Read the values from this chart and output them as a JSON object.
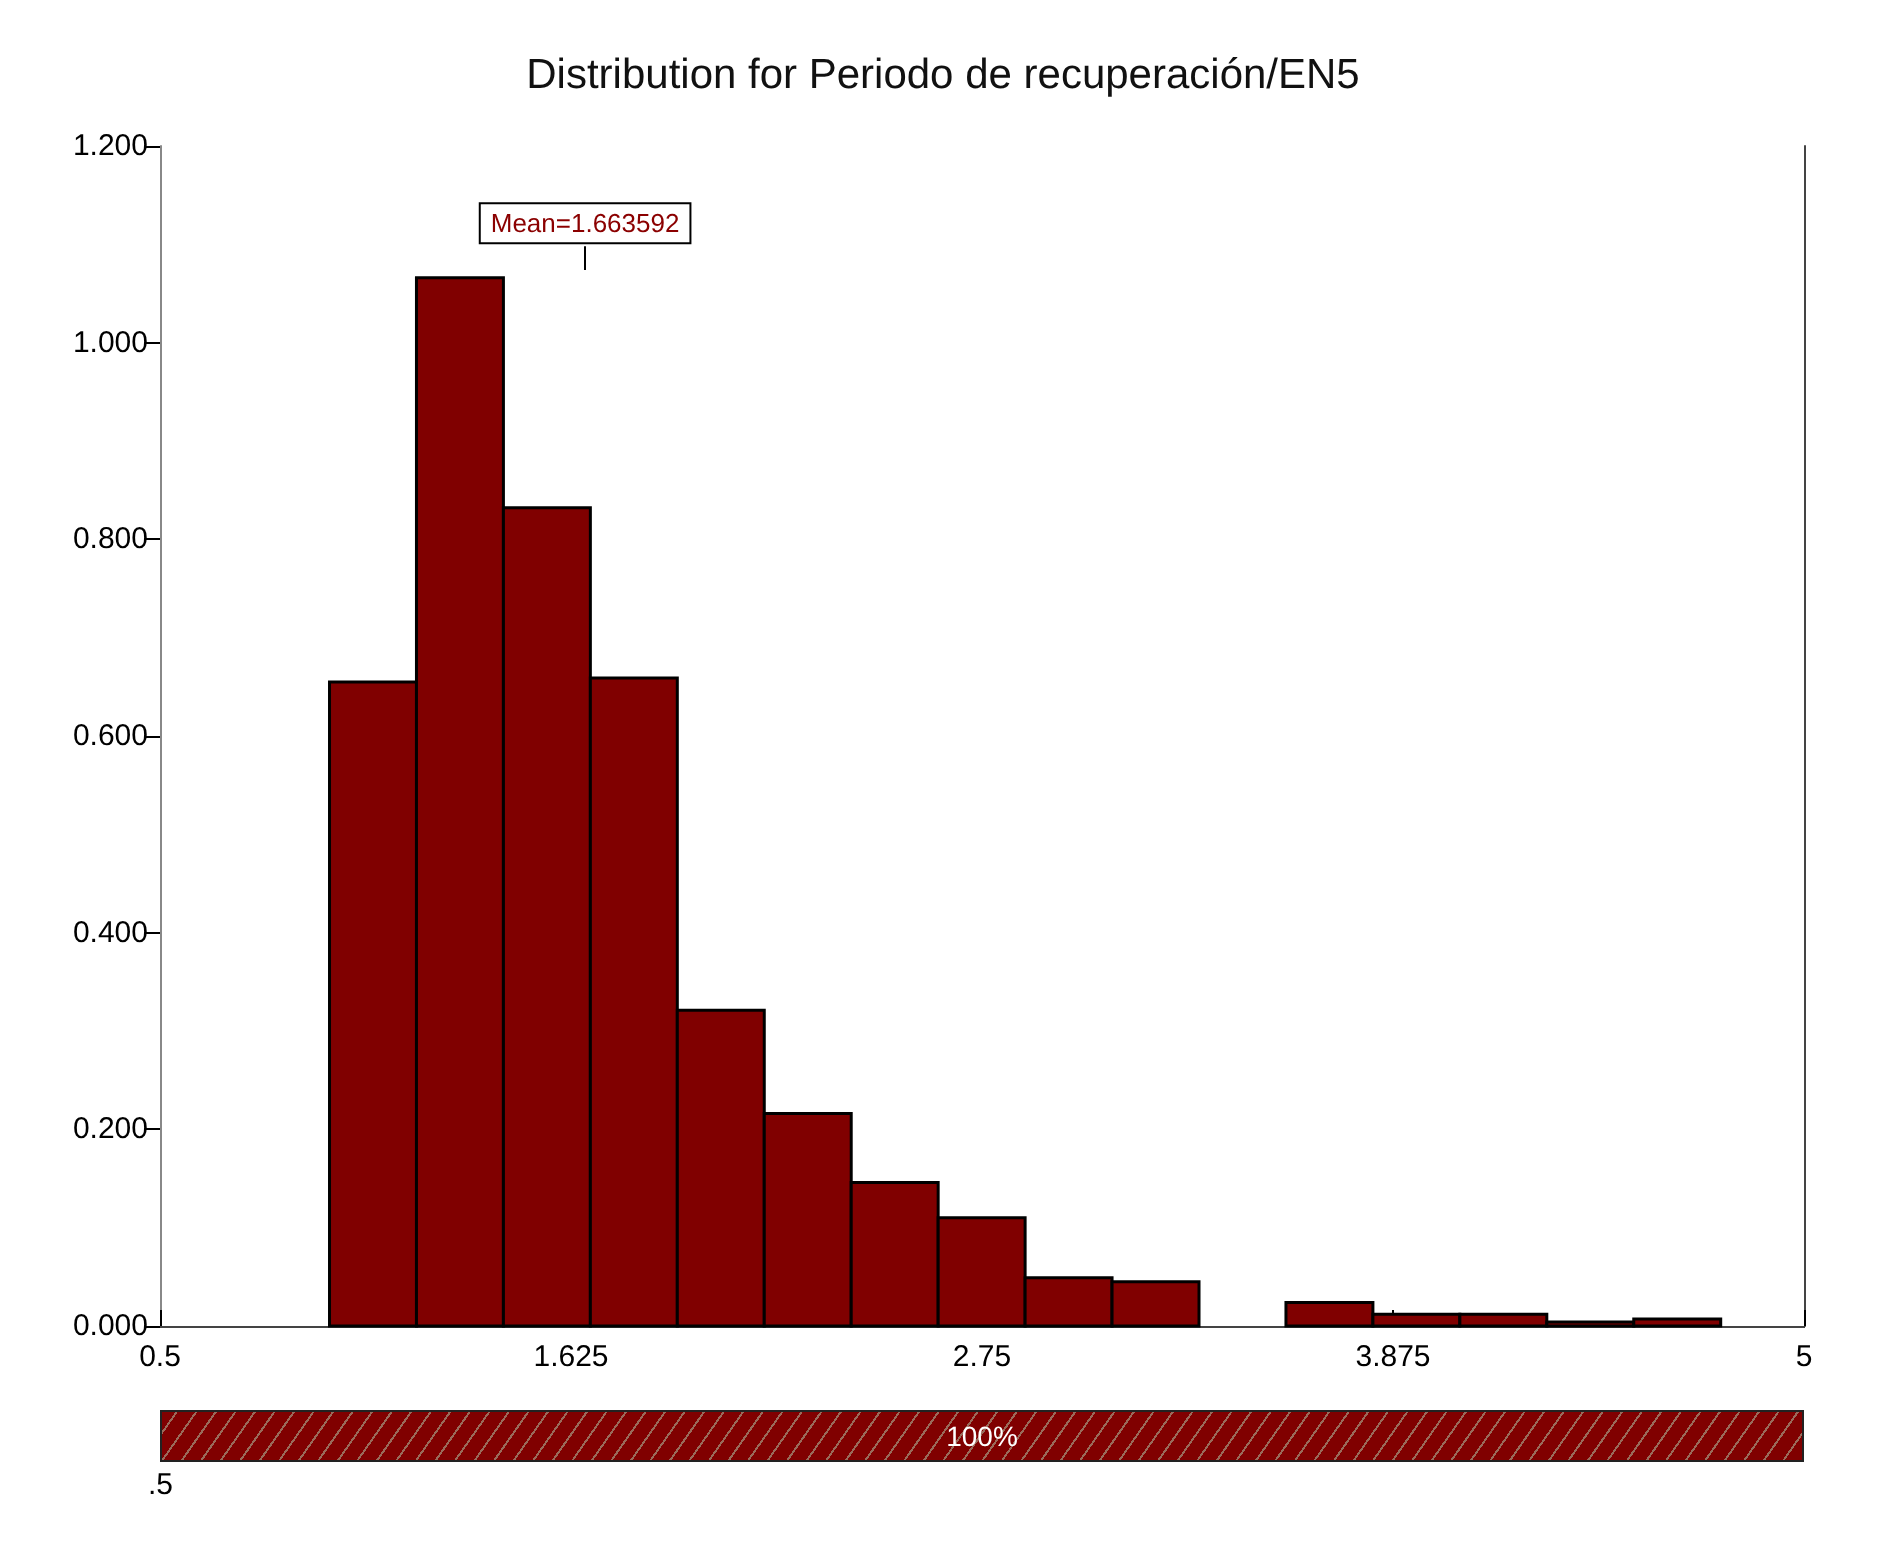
{
  "chart_data": {
    "type": "histogram",
    "title": "Distribution for Periodo de recuperación/EN5",
    "bins": [
      0.964,
      1.202,
      1.44,
      1.678,
      1.916,
      2.154,
      2.392,
      2.63,
      2.868,
      3.106,
      3.344,
      3.582,
      3.82,
      4.058,
      4.296,
      4.534,
      4.772
    ],
    "values": [
      0.655,
      1.066,
      0.832,
      0.659,
      0.321,
      0.216,
      0.146,
      0.11,
      0.049,
      0.045,
      0,
      0.024,
      0.012,
      0.012,
      0.004,
      0.007
    ],
    "color": "#800000",
    "xlim": [
      0.5,
      5
    ],
    "xticks": [
      0.5,
      1.625,
      2.75,
      3.875,
      5
    ],
    "ylim": [
      0,
      1.2
    ],
    "yticks": [
      {
        "value": 0,
        "label": "0.000"
      },
      {
        "value": 0.2,
        "label": "0.200"
      },
      {
        "value": 0.4,
        "label": "0.400"
      },
      {
        "value": 0.6,
        "label": "0.600"
      },
      {
        "value": 0.8,
        "label": "0.800"
      },
      {
        "value": 1,
        "label": "1.000"
      },
      {
        "value": 1.2,
        "label": "1.200"
      }
    ],
    "grid": false,
    "ref_lines": [
      {
        "axis": "x",
        "value": 1.663592,
        "label": "Mean=1.663592"
      }
    ],
    "annotations": [
      "100%",
      ".5"
    ]
  }
}
